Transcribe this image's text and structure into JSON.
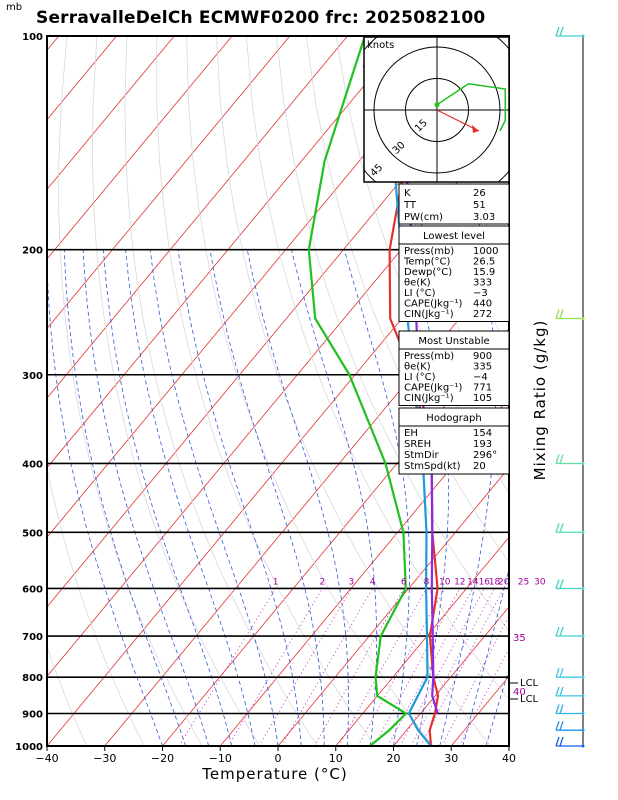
{
  "title": "SerravalleDelCh ECMWF0200 frc: 2025082100",
  "pressure_unit": "mb",
  "chart_data": {
    "type": "line",
    "xlabel": "Temperature (°C)",
    "ylabel": "Mixing Ratio (g/kg)",
    "x_range": [
      -40,
      40
    ],
    "x_ticks": [
      "−40",
      "−30",
      "−20",
      "−10",
      "0",
      "10",
      "20",
      "30",
      "40"
    ],
    "x_tick_values": [
      -40,
      -30,
      -20,
      -10,
      0,
      10,
      20,
      30,
      40
    ],
    "p_range": [
      1000,
      100
    ],
    "p_ticks": [
      "100",
      "200",
      "300",
      "400",
      "500",
      "600",
      "700",
      "800",
      "900",
      "1000"
    ],
    "p_tick_values": [
      100,
      200,
      300,
      400,
      500,
      600,
      700,
      800,
      900,
      1000
    ],
    "mixing_ratio_labels": [
      "1",
      "2",
      "3",
      "4",
      "6",
      "8",
      "10",
      "12",
      "14",
      "16",
      "18",
      "20",
      "25",
      "30"
    ],
    "mixing_ratio_values": [
      1,
      2,
      3,
      4,
      6,
      8,
      10,
      12,
      14,
      16,
      18,
      20,
      25,
      30
    ],
    "side_labels": {
      "pw_35": "35",
      "pw_40": "40",
      "lcl1": "LCL",
      "lcl2": "LCL"
    },
    "series": [
      {
        "name": "Temperature",
        "color": "#e53030",
        "points": [
          [
            1000,
            26.5
          ],
          [
            950,
            24
          ],
          [
            900,
            22.5
          ],
          [
            850,
            20.5
          ],
          [
            800,
            17
          ],
          [
            700,
            10.5
          ],
          [
            600,
            5
          ],
          [
            500,
            -4
          ],
          [
            400,
            -14
          ],
          [
            300,
            -30
          ],
          [
            250,
            -42
          ],
          [
            200,
            -52
          ],
          [
            150,
            -62
          ],
          [
            100,
            -68
          ]
        ]
      },
      {
        "name": "Dewpoint",
        "color": "#20c020",
        "points": [
          [
            1000,
            15.9
          ],
          [
            950,
            17
          ],
          [
            900,
            17.5
          ],
          [
            850,
            10
          ],
          [
            800,
            7
          ],
          [
            700,
            2
          ],
          [
            600,
            -0.5
          ],
          [
            500,
            -9
          ],
          [
            400,
            -22
          ],
          [
            300,
            -41
          ],
          [
            250,
            -55
          ],
          [
            200,
            -66
          ],
          [
            150,
            -76
          ],
          [
            100,
            -87
          ]
        ]
      },
      {
        "name": "Parcel Lowest",
        "color": "#1e9ad6",
        "points": [
          [
            1000,
            26.5
          ],
          [
            950,
            22
          ],
          [
            900,
            18
          ],
          [
            850,
            17
          ],
          [
            800,
            16
          ],
          [
            700,
            10
          ],
          [
            600,
            3
          ],
          [
            500,
            -5
          ],
          [
            400,
            -15.5
          ],
          [
            300,
            -30
          ],
          [
            250,
            -39
          ],
          [
            200,
            -50
          ],
          [
            150,
            -64
          ],
          [
            110,
            -83
          ]
        ]
      },
      {
        "name": "Parcel Most Unstable",
        "color": "#8a2be2",
        "points": [
          [
            900,
            23
          ],
          [
            850,
            19.5
          ],
          [
            800,
            17
          ],
          [
            700,
            11
          ],
          [
            600,
            4
          ],
          [
            500,
            -4
          ],
          [
            400,
            -14
          ],
          [
            300,
            -29
          ],
          [
            250,
            -37.5
          ],
          [
            200,
            -48
          ],
          [
            150,
            -62
          ],
          [
            110,
            -79
          ]
        ]
      }
    ]
  },
  "hodograph": {
    "unit_label": "knots",
    "ring_labels": [
      "15",
      "30",
      "45"
    ],
    "ring_values": [
      15,
      30,
      45
    ],
    "trace": [
      [
        0,
        1
      ],
      [
        6,
        5
      ],
      [
        13,
        4
      ],
      [
        13,
        -2
      ],
      [
        12,
        -4
      ]
    ],
    "storm_motion": [
      8,
      -4
    ]
  },
  "indices": {
    "K": "26",
    "TT": "51",
    "PW": "3.03",
    "K_label": "K",
    "TT_label": "TT",
    "PW_label": "PW(cm)"
  },
  "lowest_level": {
    "header": "Lowest level",
    "rows": [
      {
        "label": "Press(mb)",
        "value": "1000"
      },
      {
        "label": "Temp(°C)",
        "value": "26.5"
      },
      {
        "label": "Dewp(°C)",
        "value": "15.9"
      },
      {
        "label": "θe(K)",
        "value": "333"
      },
      {
        "label": "LI (°C)",
        "value": "−3"
      },
      {
        "label": "CAPE(Jkg⁻¹)",
        "value": "440"
      },
      {
        "label": "CIN(Jkg⁻¹)",
        "value": "272"
      }
    ]
  },
  "most_unstable": {
    "header": "Most Unstable",
    "rows": [
      {
        "label": "Press(mb)",
        "value": "900"
      },
      {
        "label": "θe(K)",
        "value": "335"
      },
      {
        "label": "LI (°C)",
        "value": "−4"
      },
      {
        "label": "CAPE(Jkg⁻¹)",
        "value": "771"
      },
      {
        "label": "CIN(Jkg⁻¹)",
        "value": "105"
      }
    ]
  },
  "hodograph_params": {
    "header": "Hodograph",
    "rows": [
      {
        "label": "EH",
        "value": "154"
      },
      {
        "label": "SREH",
        "value": "193"
      },
      {
        "label": "StmDir",
        "value": "296°"
      },
      {
        "label": "StmSpd(kt)",
        "value": "20"
      }
    ]
  },
  "wind_barbs": [
    {
      "p": 100,
      "color": "#40d0c8"
    },
    {
      "p": 250,
      "color": "#90e050"
    },
    {
      "p": 400,
      "color": "#60e0a0"
    },
    {
      "p": 500,
      "color": "#50e0b0"
    },
    {
      "p": 600,
      "color": "#40d8c0"
    },
    {
      "p": 700,
      "color": "#40d0d0"
    },
    {
      "p": 800,
      "color": "#40c8e0"
    },
    {
      "p": 850,
      "color": "#40c0e0"
    },
    {
      "p": 900,
      "color": "#30b0e8"
    },
    {
      "p": 950,
      "color": "#2090f0"
    },
    {
      "p": 1000,
      "color": "#1060f0"
    }
  ],
  "colors": {
    "isotherm": "#e53030",
    "dry_adiabat": "#e53030",
    "moist_adiabat": "#2a5bd7",
    "mixing_ratio": "#c020c0",
    "dewpoint": "#20c020"
  }
}
